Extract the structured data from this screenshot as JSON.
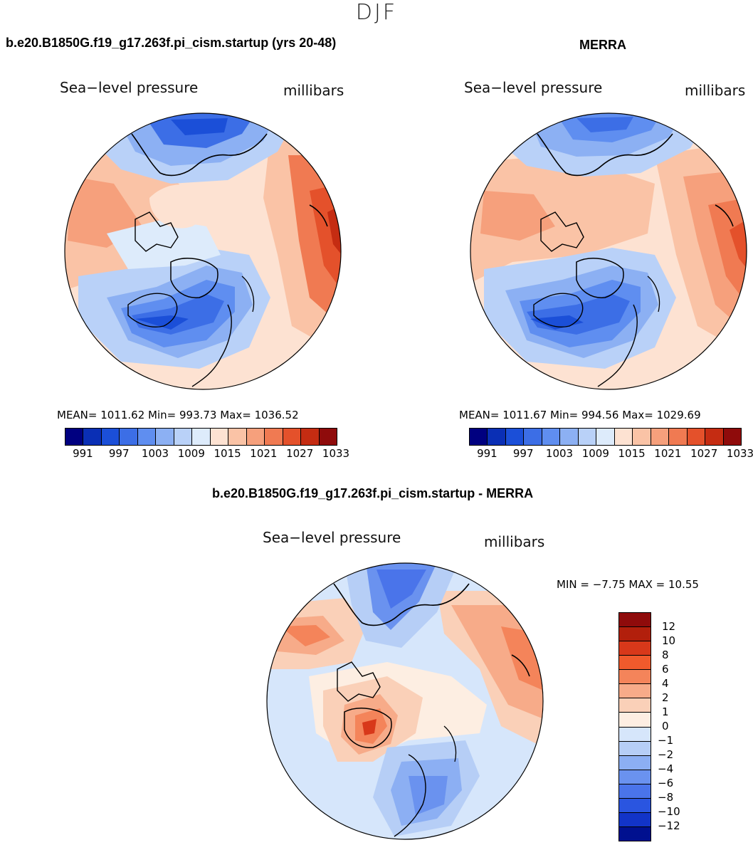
{
  "page": {
    "season": "DJF"
  },
  "panels": {
    "model": {
      "case_title": "b.e20.B1850G.f19_g17.263f.pi_cism.startup (yrs 20-48)",
      "variable": "Sea−level pressure",
      "units": "millibars",
      "stats": "MEAN= 1011.62 Min= 993.73 Max= 1036.52"
    },
    "obs": {
      "case_title": "MERRA",
      "variable": "Sea−level pressure",
      "units": "millibars",
      "stats": "MEAN= 1011.67 Min= 994.56 Max= 1029.69"
    },
    "diff": {
      "case_title": "b.e20.B1850G.f19_g17.263f.pi_cism.startup - MERRA",
      "variable": "Sea−level pressure",
      "units": "millibars",
      "stats": "MIN = −7.75 MAX = 10.55"
    }
  },
  "colorbars": {
    "abs": {
      "colors": [
        "#000080",
        "#0a2fb5",
        "#1b4fd8",
        "#3c6ee6",
        "#5f8ef0",
        "#8cb0f3",
        "#b9d1f8",
        "#ddebfb",
        "#fde2d2",
        "#fac3a6",
        "#f6a07c",
        "#f07a52",
        "#e4512b",
        "#c52c12",
        "#8f0b0b"
      ],
      "tick_labels": [
        "991",
        "997",
        "1003",
        "1009",
        "1015",
        "1021",
        "1027",
        "1033"
      ]
    },
    "diff": {
      "colors": [
        "#8f0b0b",
        "#b21f0c",
        "#d8381a",
        "#f05a2c",
        "#f4845a",
        "#f7ab89",
        "#fad0b8",
        "#fdeee2",
        "#d6e6fb",
        "#b6cef6",
        "#8caff3",
        "#6a92ef",
        "#4a74ea",
        "#2a55e0",
        "#1234c8",
        "#00108f"
      ],
      "tick_labels": [
        "12",
        "10",
        "8",
        "6",
        "4",
        "2",
        "1",
        "0",
        "−1",
        "−2",
        "−4",
        "−6",
        "−8",
        "−10",
        "−12"
      ]
    }
  }
}
